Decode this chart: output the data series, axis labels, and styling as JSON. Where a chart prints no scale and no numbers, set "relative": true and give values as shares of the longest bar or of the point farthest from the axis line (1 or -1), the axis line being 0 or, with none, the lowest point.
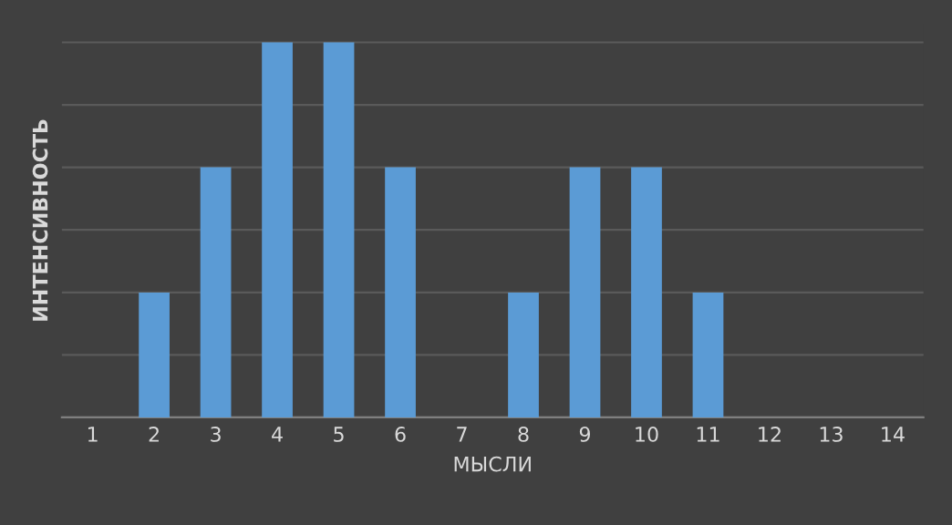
{
  "chart_data": {
    "type": "bar",
    "xlabel": "МЫСЛИ",
    "ylabel": "ИНТЕНСИВНОСТЬ",
    "categories": [
      "1",
      "2",
      "3",
      "4",
      "5",
      "6",
      "7",
      "8",
      "9",
      "10",
      "11",
      "12",
      "13",
      "14"
    ],
    "values": [
      0,
      0.333,
      0.667,
      1,
      1,
      0.667,
      0,
      0.333,
      0.667,
      0.667,
      0.333,
      0,
      0,
      0
    ],
    "color": "#5b9bd5",
    "relative": true,
    "grid": "y",
    "legend": false
  }
}
